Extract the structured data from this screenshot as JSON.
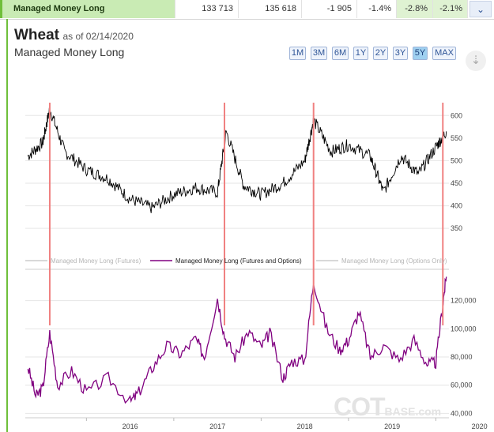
{
  "topbar": {
    "name": "Managed Money Long",
    "values": [
      "133 713",
      "135 618",
      "-1 905",
      "-1.4%",
      "-2.8%",
      "-2.1%"
    ],
    "toggle_icon": "chevron-down-icon"
  },
  "header": {
    "title": "Wheat",
    "as_of": "as of 02/14/2020",
    "subtitle": "Managed Money Long"
  },
  "range_buttons": [
    "1M",
    "3M",
    "6M",
    "1Y",
    "2Y",
    "3Y",
    "5Y",
    "MAX"
  ],
  "active_range": "5Y",
  "download_icon": "download-icon",
  "watermark": {
    "main": "COT",
    "small": "BASE.com"
  },
  "colors": {
    "price": "#000000",
    "futures_options": "#800080",
    "peak_marker": "#f08080",
    "grid": "#e6e6e6",
    "active_button": "#9fd0f0"
  },
  "chart_data": [
    {
      "type": "line",
      "series": [
        {
          "name": "",
          "x": [
            2015.33,
            2015.5,
            2015.58,
            2015.75,
            2016.0,
            2016.25,
            2016.5,
            2016.75,
            2017.0,
            2017.25,
            2017.5,
            2017.6,
            2017.8,
            2018.0,
            2018.25,
            2018.5,
            2018.6,
            2018.8,
            2019.0,
            2019.25,
            2019.4,
            2019.6,
            2019.8,
            2020.0,
            2020.12
          ],
          "values": [
            510,
            540,
            615,
            520,
            480,
            460,
            415,
            395,
            425,
            440,
            430,
            565,
            445,
            425,
            450,
            500,
            590,
            520,
            535,
            510,
            430,
            510,
            470,
            530,
            565
          ]
        }
      ],
      "yticks": [
        350,
        400,
        450,
        500,
        550,
        600
      ],
      "ylim": [
        310,
        625
      ]
    },
    {
      "type": "line",
      "legend": [
        "Managed Money Long (Futures)",
        "Managed Money Long (Futures and Options)",
        "Managed Money Long (Options Only)"
      ],
      "series": [
        {
          "name": "Managed Money Long (Futures and Options)",
          "x": [
            2015.33,
            2015.42,
            2015.5,
            2015.58,
            2015.67,
            2015.83,
            2016.0,
            2016.25,
            2016.5,
            2016.6,
            2016.75,
            2016.92,
            2017.08,
            2017.25,
            2017.35,
            2017.5,
            2017.58,
            2017.7,
            2017.85,
            2018.0,
            2018.1,
            2018.25,
            2018.35,
            2018.5,
            2018.6,
            2018.75,
            2018.9,
            2019.0,
            2019.12,
            2019.25,
            2019.4,
            2019.58,
            2019.75,
            2019.9,
            2020.0,
            2020.08,
            2020.12
          ],
          "values": [
            73000,
            52000,
            58000,
            97000,
            60000,
            70000,
            55000,
            65000,
            48000,
            55000,
            72000,
            88000,
            82000,
            93000,
            80000,
            122000,
            95000,
            80000,
            98000,
            87000,
            97000,
            65000,
            77000,
            78000,
            134000,
            100000,
            85000,
            92000,
            112000,
            80000,
            88000,
            78000,
            92000,
            75000,
            76000,
            118000,
            137000
          ]
        }
      ],
      "x_ticks": [
        "2016",
        "2017",
        "2018",
        "2019",
        "2020"
      ],
      "yticks": [
        40000,
        60000,
        80000,
        100000,
        120000
      ],
      "ytick_labels": [
        "40,000",
        "60,000",
        "80,000",
        "100,000",
        "120,000"
      ],
      "ylim": [
        38000,
        140000
      ],
      "xlim": [
        2015.3,
        2020.15
      ],
      "peak_markers_x": [
        2015.58,
        2017.58,
        2018.6,
        2020.08
      ]
    }
  ]
}
